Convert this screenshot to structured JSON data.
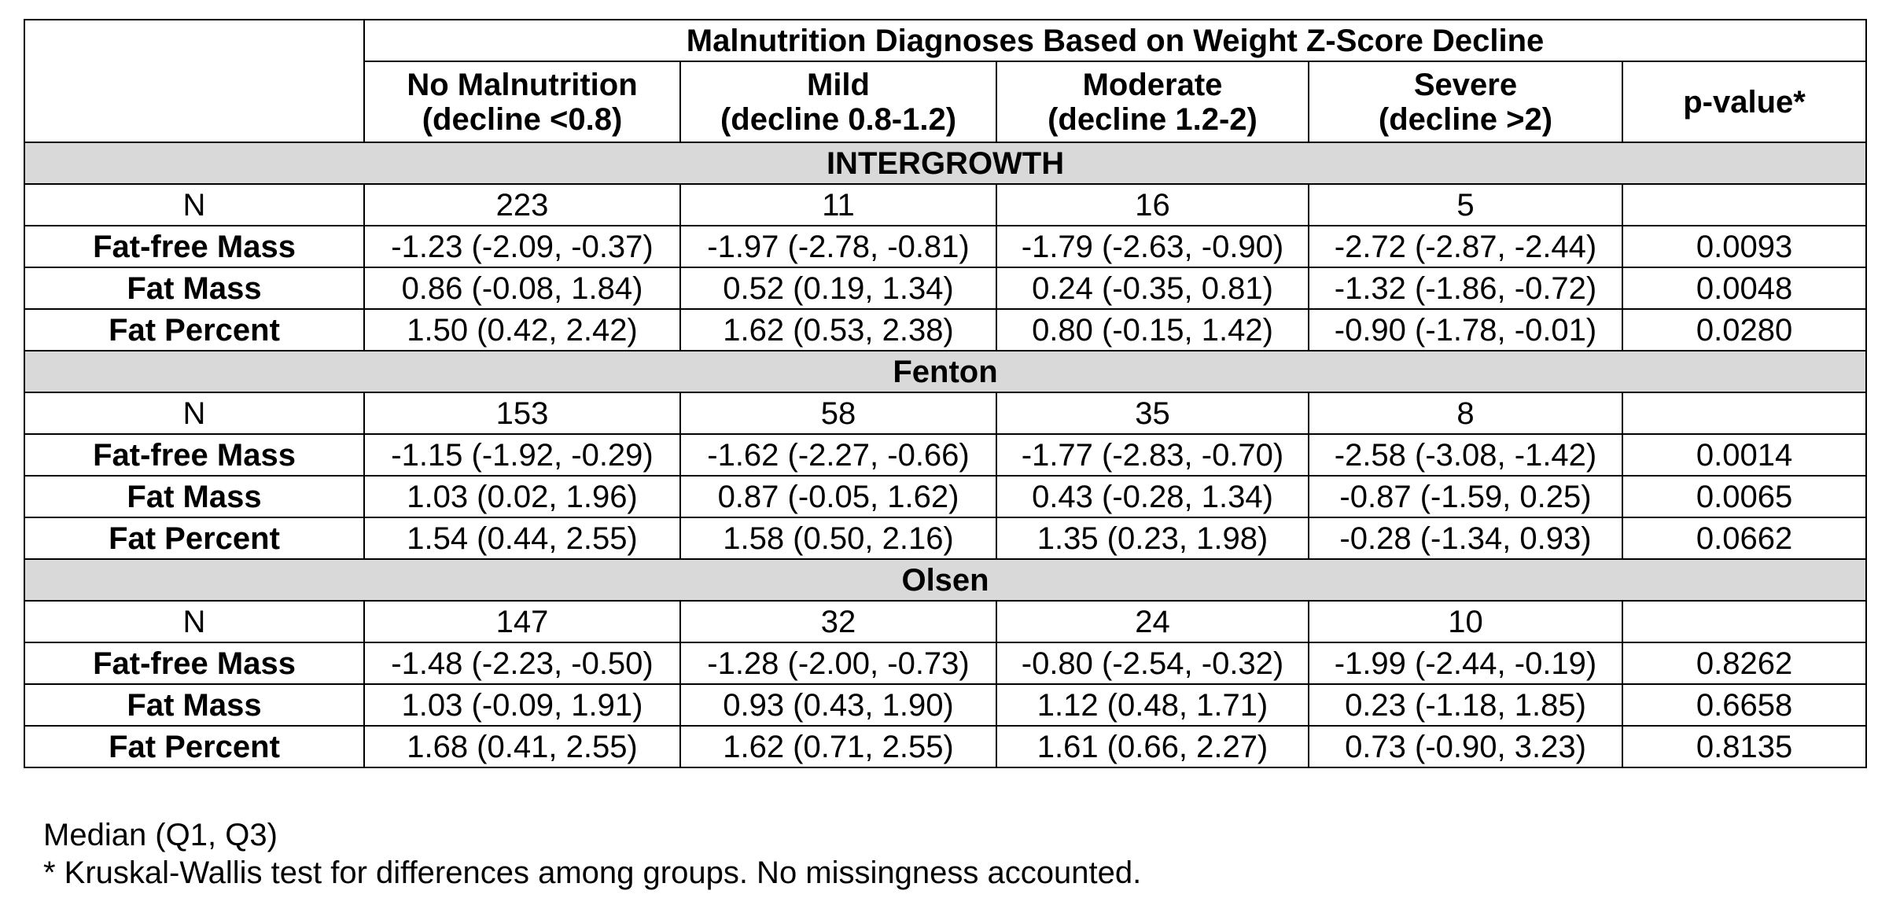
{
  "table": {
    "spanning_header": "Malnutrition Diagnoses Based on Weight Z-Score Decline",
    "columns": [
      {
        "line1": "No Malnutrition",
        "line2": "(decline <0.8)"
      },
      {
        "line1": "Mild",
        "line2": "(decline 0.8-1.2)"
      },
      {
        "line1": "Moderate",
        "line2": "(decline 1.2-2)"
      },
      {
        "line1": "Severe",
        "line2": "(decline >2)"
      }
    ],
    "pvalue_header": "p-value*",
    "sections": [
      {
        "name": "INTERGROWTH",
        "rows": [
          {
            "label": "N",
            "cells": [
              "223",
              "11",
              "16",
              "5"
            ],
            "p": ""
          },
          {
            "label": "Fat-free Mass",
            "cells": [
              "-1.23 (-2.09, -0.37)",
              "-1.97 (-2.78, -0.81)",
              "-1.79 (-2.63, -0.90)",
              "-2.72 (-2.87, -2.44)"
            ],
            "p": "0.0093"
          },
          {
            "label": "Fat Mass",
            "cells": [
              "0.86 (-0.08, 1.84)",
              "0.52 (0.19, 1.34)",
              "0.24 (-0.35, 0.81)",
              "-1.32 (-1.86, -0.72)"
            ],
            "p": "0.0048"
          },
          {
            "label": "Fat Percent",
            "cells": [
              "1.50 (0.42, 2.42)",
              "1.62 (0.53, 2.38)",
              "0.80 (-0.15, 1.42)",
              "-0.90 (-1.78, -0.01)"
            ],
            "p": "0.0280"
          }
        ]
      },
      {
        "name": "Fenton",
        "rows": [
          {
            "label": "N",
            "cells": [
              "153",
              "58",
              "35",
              "8"
            ],
            "p": ""
          },
          {
            "label": "Fat-free Mass",
            "cells": [
              "-1.15 (-1.92, -0.29)",
              "-1.62 (-2.27, -0.66)",
              "-1.77 (-2.83, -0.70)",
              "-2.58 (-3.08, -1.42)"
            ],
            "p": "0.0014"
          },
          {
            "label": "Fat Mass",
            "cells": [
              "1.03 (0.02, 1.96)",
              "0.87 (-0.05, 1.62)",
              "0.43 (-0.28, 1.34)",
              "-0.87 (-1.59, 0.25)"
            ],
            "p": "0.0065"
          },
          {
            "label": "Fat Percent",
            "cells": [
              "1.54 (0.44, 2.55)",
              "1.58 (0.50, 2.16)",
              "1.35 (0.23, 1.98)",
              "-0.28 (-1.34, 0.93)"
            ],
            "p": "0.0662"
          }
        ]
      },
      {
        "name": "Olsen",
        "rows": [
          {
            "label": "N",
            "cells": [
              "147",
              "32",
              "24",
              "10"
            ],
            "p": ""
          },
          {
            "label": "Fat-free Mass",
            "cells": [
              "-1.48 (-2.23, -0.50)",
              "-1.28 (-2.00, -0.73)",
              "-0.80 (-2.54, -0.32)",
              "-1.99 (-2.44, -0.19)"
            ],
            "p": "0.8262"
          },
          {
            "label": "Fat Mass",
            "cells": [
              "1.03 (-0.09, 1.91)",
              "0.93 (0.43, 1.90)",
              "1.12 (0.48, 1.71)",
              "0.23 (-1.18, 1.85)"
            ],
            "p": "0.6658"
          },
          {
            "label": "Fat Percent",
            "cells": [
              "1.68 (0.41, 2.55)",
              "1.62 (0.71, 2.55)",
              "1.61 (0.66, 2.27)",
              "0.73 (-0.90, 3.23)"
            ],
            "p": "0.8135"
          }
        ]
      }
    ]
  },
  "notes": {
    "line1": "Median (Q1, Q3)",
    "line2": "* Kruskal-Wallis test for differences among groups. No missingness accounted."
  }
}
